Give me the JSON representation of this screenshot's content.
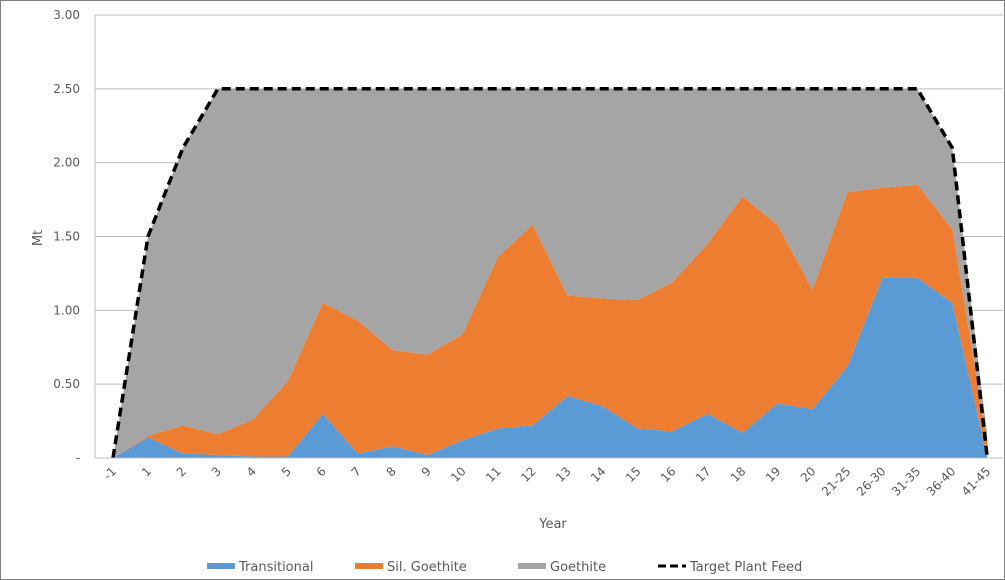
{
  "chart_data": {
    "type": "area",
    "xlabel": "Year",
    "ylabel": "Mt",
    "ylim": [
      0,
      3.0
    ],
    "yticks": [
      "-",
      "0.50",
      "1.00",
      "1.50",
      "2.00",
      "2.50",
      "3.00"
    ],
    "categories": [
      "-1",
      "1",
      "2",
      "3",
      "4",
      "5",
      "6",
      "7",
      "8",
      "9",
      "10",
      "11",
      "12",
      "13",
      "14",
      "15",
      "16",
      "17",
      "18",
      "19",
      "20",
      "21-25",
      "26-30",
      "31-35",
      "36-40",
      "41-45"
    ],
    "series": [
      {
        "name": "Transitional",
        "kind": "area",
        "color": "#5b9bd5",
        "values": [
          0,
          0.14,
          0.03,
          0.02,
          0.01,
          0.01,
          0.3,
          0.03,
          0.08,
          0.02,
          0.12,
          0.2,
          0.22,
          0.42,
          0.35,
          0.2,
          0.18,
          0.3,
          0.17,
          0.37,
          0.33,
          0.62,
          1.22,
          1.22,
          1.05,
          0
        ]
      },
      {
        "name": "Sil. Goethite",
        "kind": "area",
        "color": "#ed7d31",
        "values": [
          0,
          0.01,
          0.19,
          0.14,
          0.25,
          0.51,
          0.75,
          0.9,
          0.65,
          0.68,
          0.72,
          1.16,
          1.36,
          0.68,
          0.73,
          0.87,
          1.01,
          1.15,
          1.6,
          1.21,
          0.81,
          1.18,
          0.61,
          0.63,
          0.5,
          0.1
        ]
      },
      {
        "name": "Goethite",
        "kind": "area",
        "color": "#a5a5a5",
        "values": [
          0,
          1.35,
          1.88,
          2.34,
          2.24,
          1.98,
          1.45,
          1.57,
          1.77,
          1.8,
          1.66,
          1.14,
          0.92,
          1.4,
          1.42,
          1.43,
          1.31,
          1.05,
          0.73,
          0.92,
          1.36,
          0.7,
          0.67,
          0.65,
          0.55,
          0.05
        ]
      },
      {
        "name": "Target Plant Feed",
        "kind": "line",
        "color": "#000000",
        "values": [
          0,
          1.5,
          2.1,
          2.5,
          2.5,
          2.5,
          2.5,
          2.5,
          2.5,
          2.5,
          2.5,
          2.5,
          2.5,
          2.5,
          2.5,
          2.5,
          2.5,
          2.5,
          2.5,
          2.5,
          2.5,
          2.5,
          2.5,
          2.5,
          2.1,
          0
        ]
      }
    ],
    "legend_position": "bottom",
    "grid": true
  }
}
